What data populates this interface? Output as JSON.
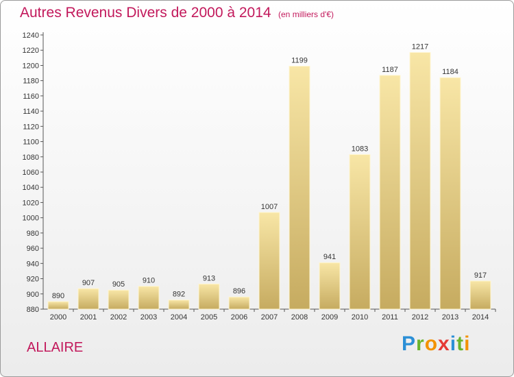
{
  "header": {
    "title": "Autres Revenus Divers de 2000 à 2014",
    "unit_note": "(en milliers d'€)"
  },
  "footer": {
    "commune": "ALLAIRE",
    "brand": "Proxiti"
  },
  "colors": {
    "title": "#c2185b",
    "bar_light": "#f7e3a0",
    "bar_dark": "#c8ad62",
    "axis": "#555555"
  },
  "chart_data": {
    "type": "bar",
    "title": "Autres Revenus Divers de 2000 à 2014",
    "subtitle": "(en milliers d'€)",
    "categories": [
      "2000",
      "2001",
      "2002",
      "2003",
      "2004",
      "2005",
      "2006",
      "2007",
      "2008",
      "2009",
      "2010",
      "2011",
      "2012",
      "2013",
      "2014"
    ],
    "values": [
      890,
      907,
      905,
      910,
      892,
      913,
      896,
      1007,
      1199,
      941,
      1083,
      1187,
      1217,
      1184,
      917
    ],
    "ylim": [
      880,
      1240
    ],
    "ytick_step": 20,
    "grid": false,
    "legend": "none"
  }
}
